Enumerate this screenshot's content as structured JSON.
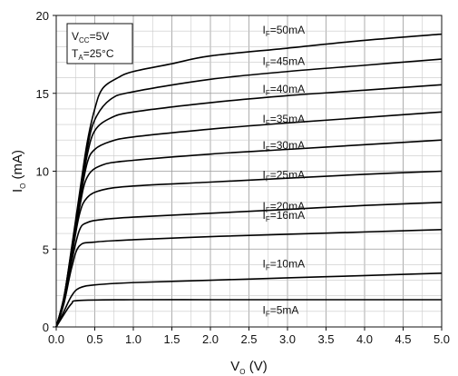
{
  "chart_data": {
    "type": "line",
    "title": "",
    "xlabel": {
      "main": "V",
      "sub": "O",
      "unit": " (V)"
    },
    "ylabel": {
      "main": "I",
      "sub": "O",
      "unit": " (mA)"
    },
    "xlim": [
      0.0,
      5.0
    ],
    "ylim": [
      0,
      20
    ],
    "x_ticks": [
      "0.0",
      "0.5",
      "1.0",
      "1.5",
      "2.0",
      "2.5",
      "3.0",
      "3.5",
      "4.0",
      "4.5",
      "5.0"
    ],
    "y_ticks": [
      "0",
      "5",
      "10",
      "15",
      "20"
    ],
    "grid": true,
    "conditions": [
      {
        "main": "V",
        "sub": "CC",
        "rest": "=5V"
      },
      {
        "main": "T",
        "sub": "A",
        "rest": "=25°C"
      }
    ],
    "series": [
      {
        "name": "IF=5mA",
        "label": {
          "main": "I",
          "sub": "F",
          "rest": "=5mA"
        },
        "x": [
          0,
          0.1,
          0.2,
          0.3,
          1.0,
          2.0,
          3.0,
          4.0,
          5.0
        ],
        "values": [
          0,
          0.8,
          1.5,
          1.7,
          1.75,
          1.75,
          1.75,
          1.75,
          1.75
        ]
      },
      {
        "name": "IF=10mA",
        "label": {
          "main": "I",
          "sub": "F",
          "rest": "=10mA"
        },
        "x": [
          0,
          0.1,
          0.2,
          0.3,
          0.5,
          1.0,
          2.0,
          3.0,
          4.0,
          5.0
        ],
        "values": [
          0,
          1.0,
          2.0,
          2.5,
          2.7,
          2.85,
          3.0,
          3.15,
          3.3,
          3.45
        ]
      },
      {
        "name": "IF=16mA",
        "label": {
          "main": "I",
          "sub": "F",
          "rest": "=16mA"
        },
        "x": [
          0,
          0.1,
          0.2,
          0.3,
          0.5,
          1.0,
          2.0,
          3.0,
          4.0,
          5.0
        ],
        "values": [
          0,
          1.5,
          3.8,
          5.2,
          5.45,
          5.6,
          5.8,
          5.95,
          6.1,
          6.25
        ]
      },
      {
        "name": "IF=20mA",
        "label": {
          "main": "I",
          "sub": "F",
          "rest": "=20mA"
        },
        "x": [
          0,
          0.1,
          0.2,
          0.3,
          0.4,
          0.6,
          1.0,
          2.0,
          3.0,
          4.0,
          5.0
        ],
        "values": [
          0,
          1.6,
          4.2,
          6.2,
          6.7,
          6.9,
          7.05,
          7.3,
          7.55,
          7.8,
          8.0
        ]
      },
      {
        "name": "IF=25mA",
        "label": {
          "main": "I",
          "sub": "F",
          "rest": "=25mA"
        },
        "x": [
          0,
          0.1,
          0.2,
          0.3,
          0.4,
          0.6,
          1.0,
          2.0,
          3.0,
          4.0,
          5.0
        ],
        "values": [
          0,
          1.7,
          4.5,
          7.2,
          8.3,
          8.8,
          9.05,
          9.3,
          9.55,
          9.8,
          10.0
        ]
      },
      {
        "name": "IF=30mA",
        "label": {
          "main": "I",
          "sub": "F",
          "rest": "=30mA"
        },
        "x": [
          0,
          0.1,
          0.2,
          0.3,
          0.4,
          0.6,
          1.0,
          2.0,
          3.0,
          4.0,
          5.0
        ],
        "values": [
          0,
          1.8,
          4.7,
          7.6,
          9.6,
          10.4,
          10.7,
          11.1,
          11.4,
          11.7,
          12.0
        ]
      },
      {
        "name": "IF=35mA",
        "label": {
          "main": "I",
          "sub": "F",
          "rest": "=35mA"
        },
        "x": [
          0,
          0.1,
          0.2,
          0.3,
          0.4,
          0.5,
          0.7,
          1.0,
          2.0,
          3.0,
          4.0,
          5.0
        ],
        "values": [
          0,
          1.8,
          4.8,
          7.9,
          10.5,
          11.4,
          11.9,
          12.2,
          12.7,
          13.1,
          13.45,
          13.8
        ]
      },
      {
        "name": "IF=40mA",
        "label": {
          "main": "I",
          "sub": "F",
          "rest": "=40mA"
        },
        "x": [
          0,
          0.1,
          0.2,
          0.3,
          0.4,
          0.5,
          0.7,
          1.0,
          2.0,
          3.0,
          4.0,
          5.0
        ],
        "values": [
          0,
          1.9,
          4.9,
          8.1,
          11.0,
          12.6,
          13.4,
          13.8,
          14.4,
          14.85,
          15.2,
          15.55
        ]
      },
      {
        "name": "IF=45mA",
        "label": {
          "main": "I",
          "sub": "F",
          "rest": "=45mA"
        },
        "x": [
          0,
          0.1,
          0.2,
          0.3,
          0.4,
          0.5,
          0.7,
          1.0,
          2.0,
          3.0,
          4.0,
          5.0
        ],
        "values": [
          0,
          1.9,
          5.0,
          8.3,
          11.4,
          13.3,
          14.6,
          15.1,
          15.9,
          16.4,
          16.8,
          17.2
        ]
      },
      {
        "name": "IF=50mA",
        "label": {
          "main": "I",
          "sub": "F",
          "rest": "=50mA"
        },
        "x": [
          0,
          0.1,
          0.2,
          0.3,
          0.4,
          0.5,
          0.6,
          0.8,
          1.0,
          1.5,
          2.0,
          3.0,
          4.0,
          5.0
        ],
        "values": [
          0,
          1.9,
          5.1,
          8.5,
          11.8,
          14.0,
          15.3,
          16.0,
          16.4,
          16.9,
          17.4,
          17.9,
          18.4,
          18.8
        ]
      }
    ],
    "label_positions": [
      {
        "series": "IF=50mA",
        "x": 2.5,
        "y": 18.6
      },
      {
        "series": "IF=45mA",
        "x": 2.5,
        "y": 16.6
      },
      {
        "series": "IF=40mA",
        "x": 2.5,
        "y": 14.8
      },
      {
        "series": "IF=35mA",
        "x": 2.5,
        "y": 12.9
      },
      {
        "series": "IF=30mA",
        "x": 2.5,
        "y": 11.2
      },
      {
        "series": "IF=25mA",
        "x": 2.5,
        "y": 9.3
      },
      {
        "series": "IF=20mA",
        "x": 2.5,
        "y": 7.3
      },
      {
        "series": "IF=16mA",
        "x": 2.5,
        "y": 6.7
      },
      {
        "series": "IF=10mA",
        "x": 2.5,
        "y": 3.6
      },
      {
        "series": "IF=5mA",
        "x": 2.5,
        "y": 0.6
      }
    ]
  }
}
